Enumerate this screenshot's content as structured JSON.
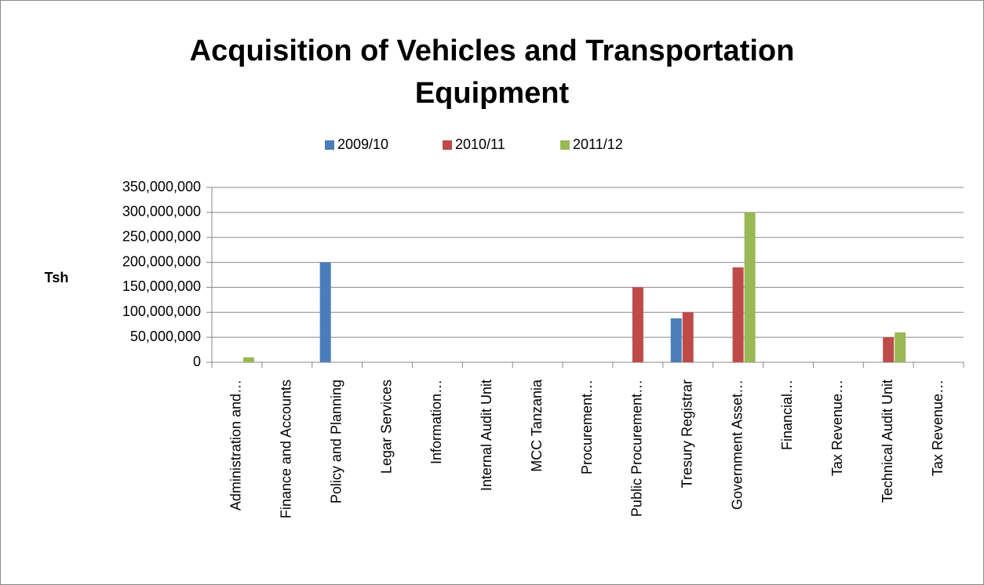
{
  "chart_data": {
    "type": "bar",
    "title": "Acquisition of Vehicles and Transportation Equipment",
    "y_label": "Tsh",
    "categories": [
      "Administration and…",
      "Finance and Accounts",
      "Policy and Planning",
      "Legar Services",
      "Information…",
      "Internal Audit Unit",
      "MCC Tanzania",
      "Procurement…",
      "Public Procurement…",
      "Tresury Registrar",
      "Government Asset…",
      "Financial…",
      "Tax Revenue…",
      "Technical Audit Unit",
      "Tax Revenue…"
    ],
    "series": [
      {
        "name": "2009/10",
        "color": "#4a7ebb",
        "values": [
          0,
          0,
          200000000,
          0,
          0,
          0,
          0,
          0,
          0,
          88000000,
          0,
          0,
          0,
          0,
          0
        ]
      },
      {
        "name": "2010/11",
        "color": "#be4b48",
        "values": [
          0,
          0,
          0,
          0,
          0,
          0,
          0,
          0,
          150000000,
          100000000,
          190000000,
          0,
          0,
          50000000,
          0
        ]
      },
      {
        "name": "2011/12",
        "color": "#98b954",
        "values": [
          10000000,
          0,
          0,
          0,
          0,
          0,
          0,
          0,
          0,
          0,
          300000000,
          0,
          0,
          60000000,
          0
        ]
      }
    ],
    "ylim": [
      0,
      350000000
    ],
    "yticks": [
      0,
      {
        "value": 50000000,
        "label": "50,000,000"
      },
      {
        "value": 100000000,
        "label": "100,000,000"
      },
      {
        "value": 150000000,
        "label": "150,000,000"
      },
      {
        "value": 200000000,
        "label": "200,000,000"
      },
      {
        "value": 250000000,
        "label": "250,000,000"
      },
      {
        "value": 300000000,
        "label": "300,000,000"
      },
      {
        "value": 350000000,
        "label": "350,000,000"
      }
    ],
    "grid": true,
    "legend": "top"
  }
}
